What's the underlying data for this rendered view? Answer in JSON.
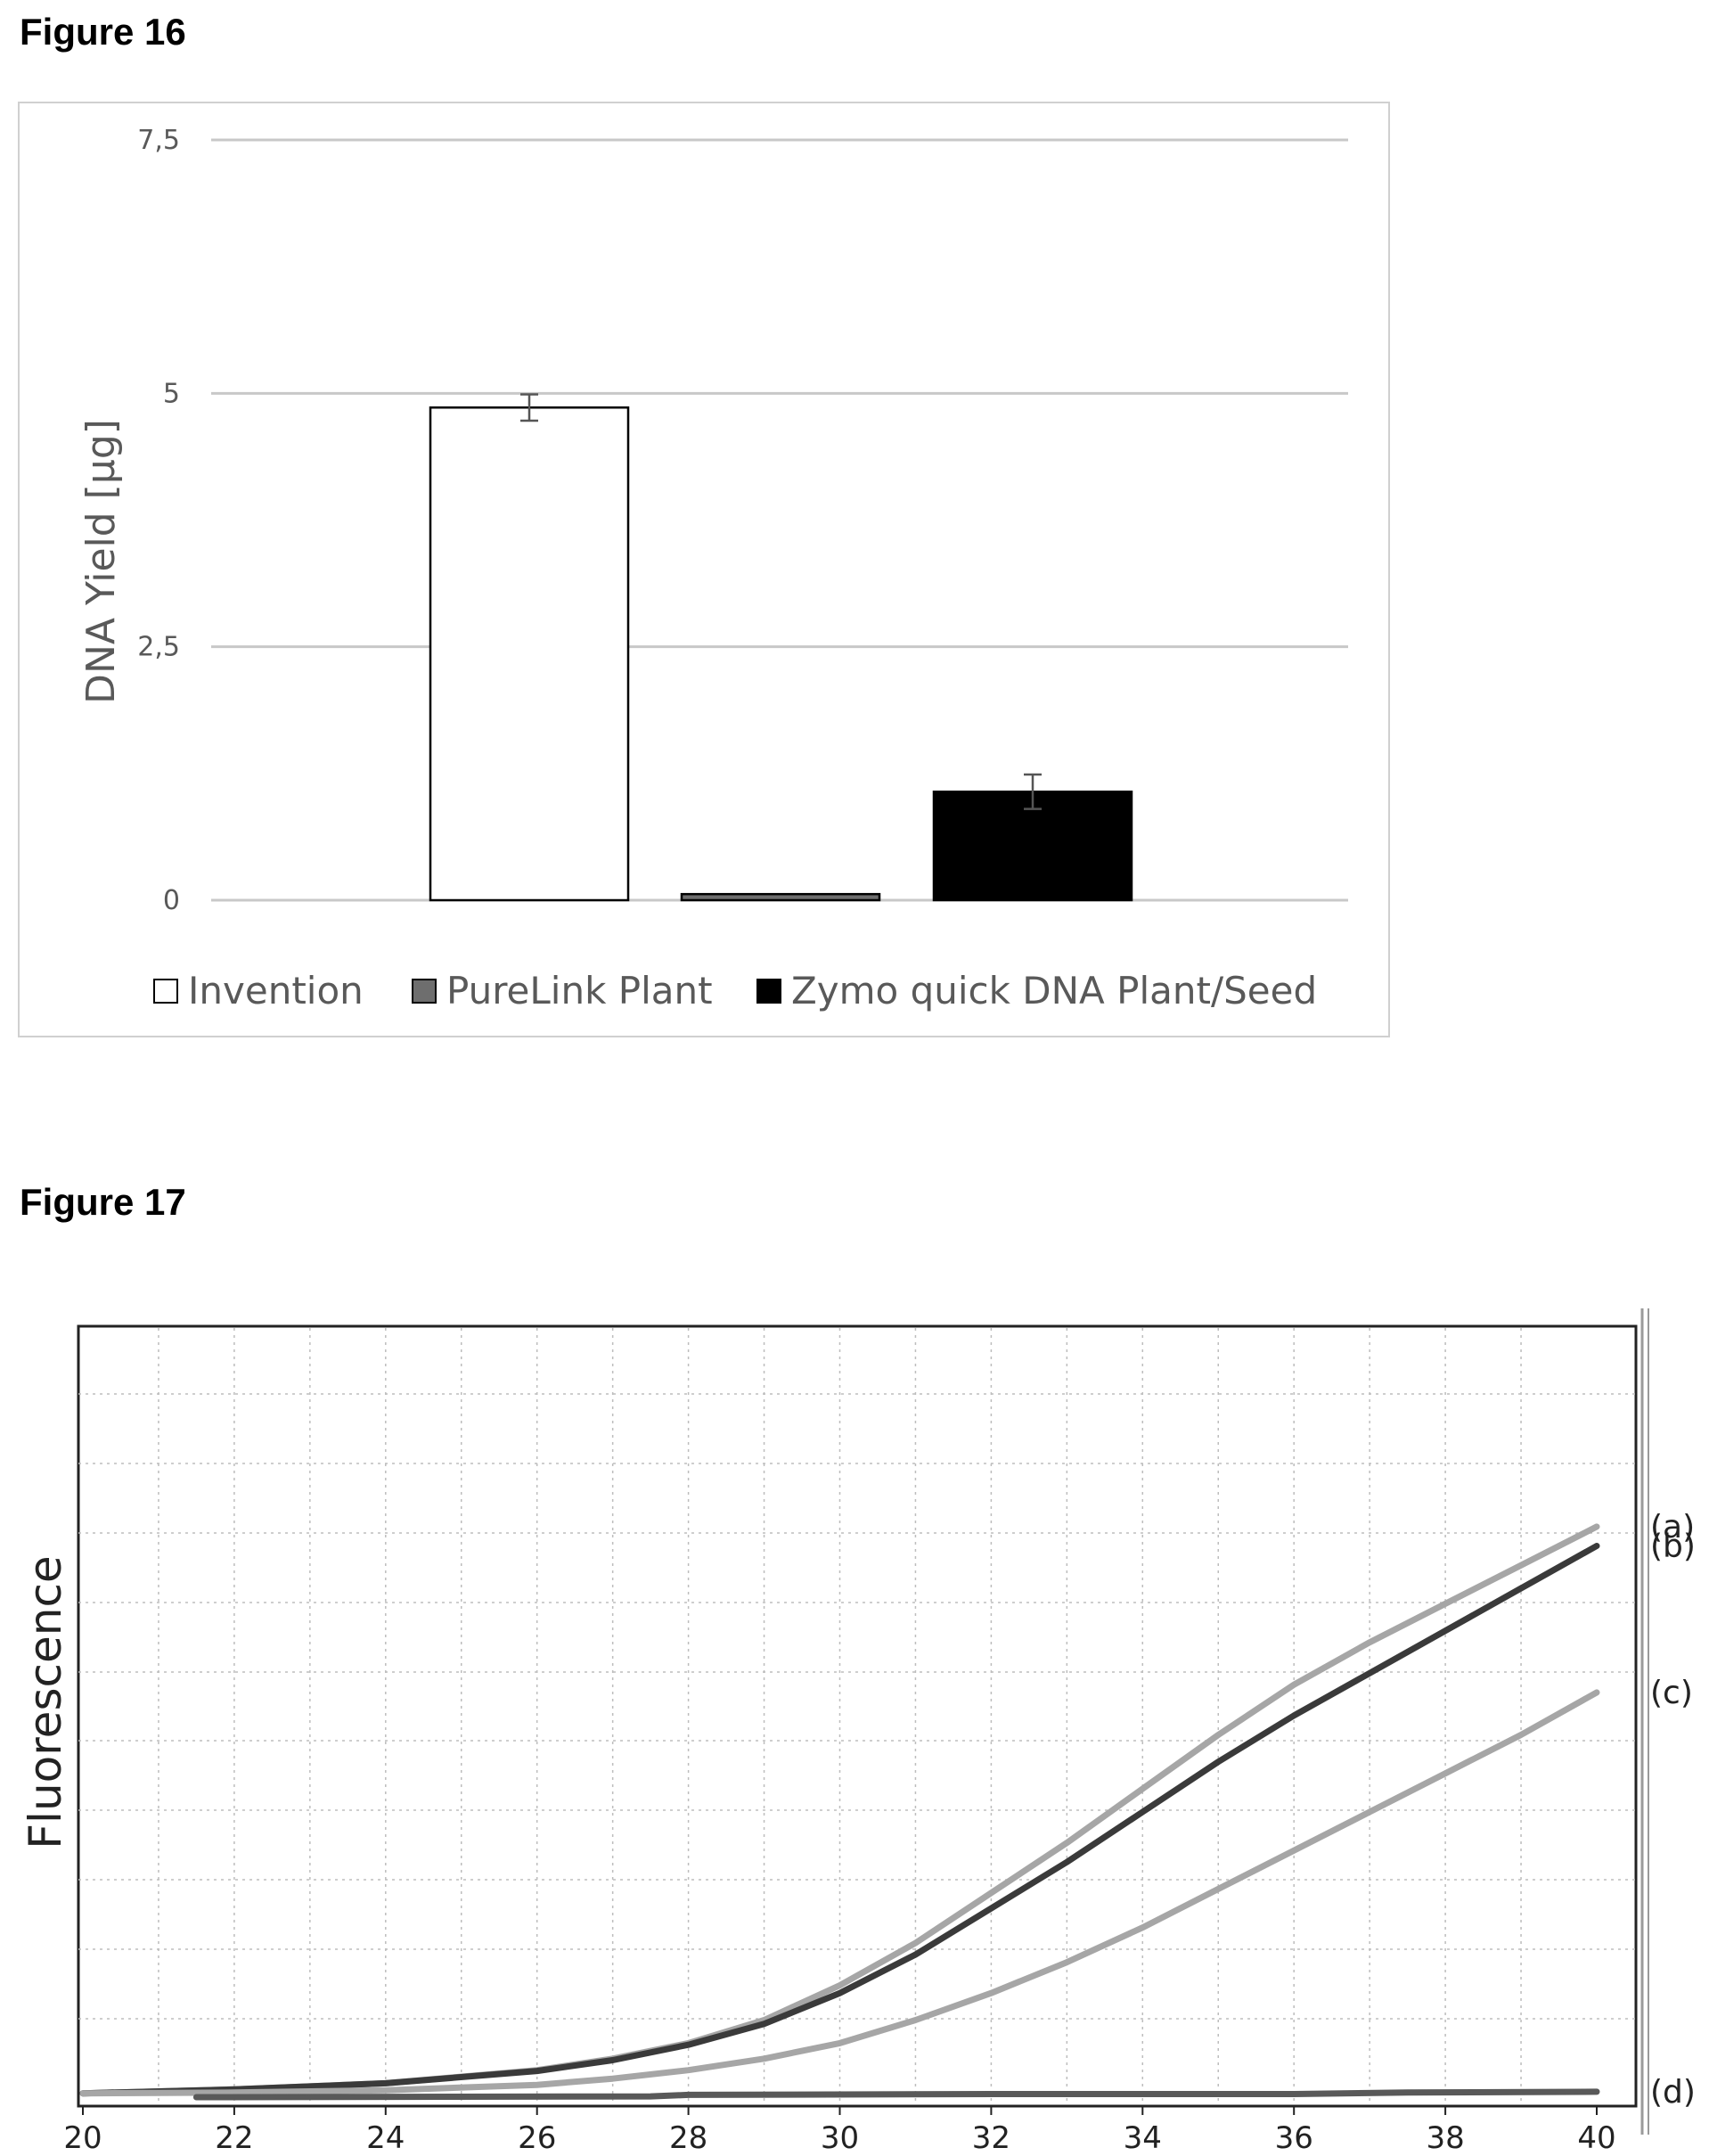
{
  "figures": [
    {
      "title": "Figure 16"
    },
    {
      "title": "Figure 17"
    }
  ],
  "chart_data": [
    {
      "type": "bar",
      "title": "",
      "xlabel": "",
      "ylabel": "DNA Yield [µg]",
      "ylim": [
        0,
        7.5
      ],
      "yticks": [
        "0",
        "2,5",
        "5",
        "7,5"
      ],
      "ytick_values": [
        0,
        2.5,
        5,
        7.5
      ],
      "grid": true,
      "legend_position": "bottom",
      "categories": [
        "Invention",
        "PureLink Plant",
        "Zymo quick DNA Plant/Seed"
      ],
      "values": [
        4.86,
        0.06,
        1.07
      ],
      "errors": [
        0.13,
        0.0,
        0.17
      ],
      "colors": [
        "#ffffff",
        "#6e6e6e",
        "#000000"
      ],
      "legend": [
        "Invention",
        "PureLink Plant",
        "Zymo quick DNA Plant/Seed"
      ]
    },
    {
      "type": "line",
      "title": "",
      "xlabel": "",
      "ylabel": "Fluorescence",
      "xlim": [
        20,
        40
      ],
      "xticks": [
        "20",
        "22",
        "24",
        "26",
        "28",
        "30",
        "32",
        "34",
        "36",
        "38",
        "40"
      ],
      "ylim": [
        0,
        100
      ],
      "grid": true,
      "series": [
        {
          "name": "(a)",
          "color": "#a6a6a6",
          "x": [
            20,
            22,
            24,
            26,
            27,
            28,
            29,
            30,
            31,
            32,
            33,
            34,
            35,
            36,
            37,
            38,
            39,
            40
          ],
          "y": [
            0.5,
            1.0,
            1.8,
            3.5,
            5.0,
            7.0,
            10.0,
            14.5,
            20.0,
            26.5,
            33.0,
            40.0,
            47.0,
            53.5,
            59.0,
            64.0,
            69.0,
            74.0
          ]
        },
        {
          "name": "(b)",
          "color": "#3a3a3a",
          "x": [
            20,
            22,
            24,
            26,
            27,
            28,
            29,
            30,
            31,
            32,
            33,
            34,
            35,
            36,
            37,
            38,
            39,
            40
          ],
          "y": [
            0.5,
            1.0,
            1.8,
            3.4,
            4.8,
            6.8,
            9.5,
            13.5,
            18.5,
            24.5,
            30.5,
            37.0,
            43.5,
            49.5,
            55.0,
            60.5,
            66.0,
            71.5
          ]
        },
        {
          "name": "(c)",
          "color": "#a6a6a6",
          "x": [
            20,
            22,
            24,
            26,
            27,
            28,
            29,
            30,
            31,
            32,
            33,
            34,
            35,
            36,
            37,
            38,
            39,
            40
          ],
          "y": [
            0.5,
            0.6,
            0.9,
            1.6,
            2.4,
            3.5,
            5.0,
            7.0,
            10.0,
            13.5,
            17.5,
            22.0,
            27.0,
            32.0,
            37.0,
            42.0,
            47.0,
            52.5
          ]
        },
        {
          "name": "(d)",
          "color": "#595959",
          "x": [
            21.5,
            27.5,
            28,
            32,
            36,
            37.5,
            40
          ],
          "y": [
            0.0,
            0.1,
            0.3,
            0.4,
            0.4,
            0.6,
            0.7
          ]
        }
      ]
    }
  ]
}
